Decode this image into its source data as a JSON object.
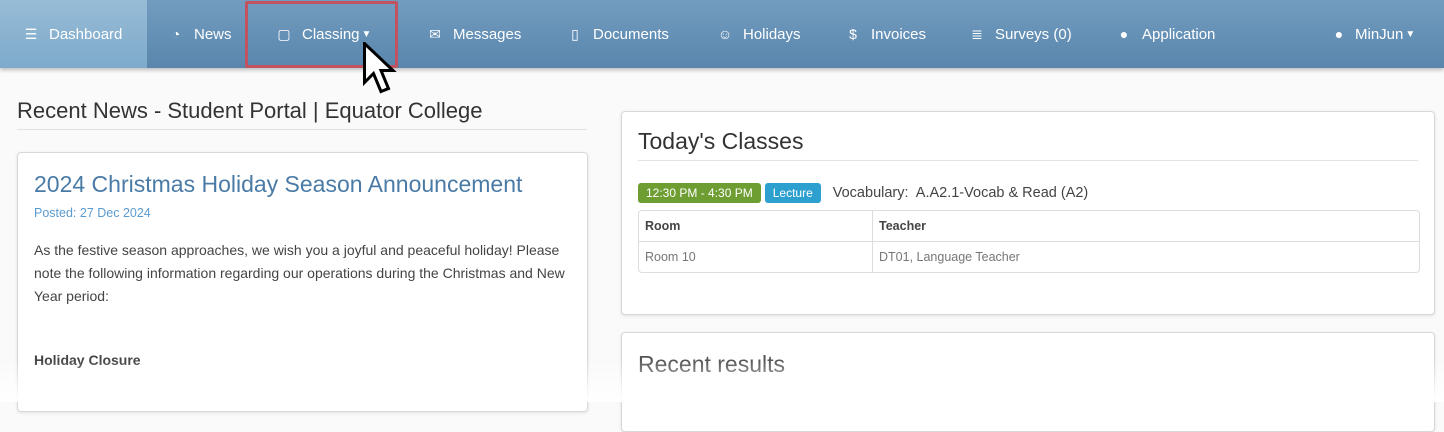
{
  "nav": {
    "items": [
      {
        "label": "Dashboard",
        "icon": "dashboard-icon"
      },
      {
        "label": "News",
        "icon": "rss-icon"
      },
      {
        "label": "Classing",
        "icon": "calendar-icon"
      },
      {
        "label": "Messages",
        "icon": "envelope-icon"
      },
      {
        "label": "Documents",
        "icon": "file-icon"
      },
      {
        "label": "Holidays",
        "icon": "smile-icon"
      },
      {
        "label": "Invoices",
        "icon": "dollar-icon"
      },
      {
        "label": "Surveys (0)",
        "icon": "list-icon"
      },
      {
        "label": "Application",
        "icon": "user-icon"
      }
    ],
    "user": "MinJun"
  },
  "news": {
    "heading": "Recent News - Student Portal | Equator College",
    "title": "2024 Christmas Holiday Season Announcement",
    "posted": "Posted: 27 Dec 2024",
    "body": "As the festive season approaches, we wish you a joyful and peaceful holiday! Please note the following information regarding our operations during the Christmas and New Year period:",
    "subheading": "Holiday Closure"
  },
  "classes": {
    "title": "Today's Classes",
    "time": "12:30 PM - 4:30 PM",
    "type": "Lecture",
    "name": "Vocabulary:  A.A2.1-Vocab & Read (A2)",
    "headers": [
      "Room",
      "Teacher"
    ],
    "row": [
      "Room 10",
      "DT01, Language Teacher"
    ],
    "colors": {
      "time": "#6e9e32",
      "type": "#2ea0d0"
    }
  },
  "results": {
    "title": "Recent results"
  }
}
